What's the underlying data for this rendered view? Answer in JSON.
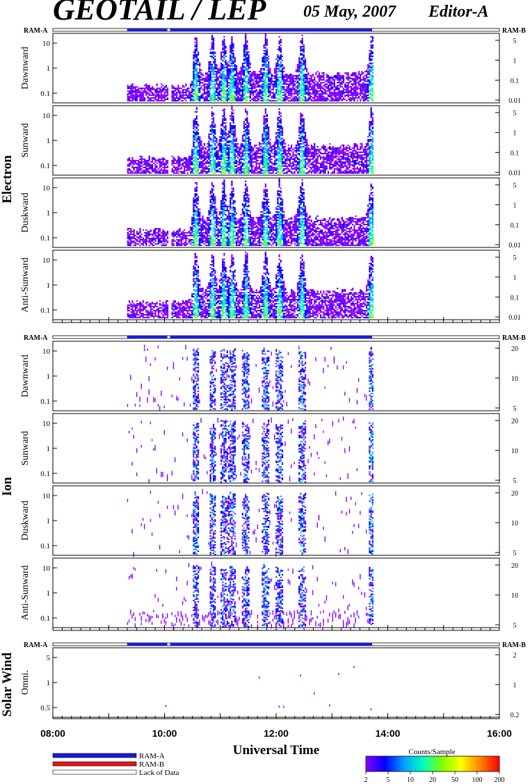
{
  "header": {
    "title": "GEOTAIL / LEP",
    "date": "05 May, 2007",
    "editor": "Editor-A"
  },
  "chart_data": {
    "type": "heatmap",
    "xlabel": "Universal Time",
    "x_ticks": [
      "08:00",
      "10:00",
      "12:00",
      "14:00",
      "16:00"
    ],
    "xlim_hours": [
      8,
      16
    ],
    "data_coverage_hours": [
      9.33,
      13.72
    ],
    "data_gap_hours": [
      10.05,
      10.1
    ],
    "panels_groups": [
      {
        "group": "Electron",
        "panels": [
          {
            "label": "Dawnward",
            "left_ticks": [
              "10",
              "1",
              "0.1"
            ],
            "right_ticks": [
              "5",
              "1",
              "0.1",
              "0.01"
            ]
          },
          {
            "label": "Sunward",
            "left_ticks": [
              "10",
              "1",
              "0.1"
            ],
            "right_ticks": [
              "5",
              "1",
              "0.1",
              "0.01"
            ]
          },
          {
            "label": "Duskward",
            "left_ticks": [
              "10",
              "1",
              "0.1"
            ],
            "right_ticks": [
              "5",
              "1",
              "0.1",
              "0.01"
            ]
          },
          {
            "label": "Anti-Sunward",
            "left_ticks": [
              "10",
              "1",
              "0.1"
            ],
            "right_ticks": [
              "5",
              "1",
              "0.1",
              "0.01"
            ]
          }
        ]
      },
      {
        "group": "Ion",
        "panels": [
          {
            "label": "Dawnward",
            "left_ticks": [
              "10",
              "1",
              "0.1"
            ],
            "right_ticks": [
              "20",
              "10",
              "5"
            ]
          },
          {
            "label": "Sunward",
            "left_ticks": [
              "10",
              "1",
              "0.1"
            ],
            "right_ticks": [
              "20",
              "10",
              "5"
            ]
          },
          {
            "label": "Duskward",
            "left_ticks": [
              "10",
              "1",
              "0.1"
            ],
            "right_ticks": [
              "20",
              "10",
              "5"
            ]
          },
          {
            "label": "Anti-Sunward",
            "left_ticks": [
              "10",
              "1",
              "0.1"
            ],
            "right_ticks": [
              "20",
              "10",
              "5"
            ]
          }
        ]
      },
      {
        "group": "Solar Wind",
        "panels": [
          {
            "label": "Omni.",
            "left_ticks": [
              "5",
              "1",
              "0.5"
            ],
            "right_ticks": [
              "2",
              "1",
              "0.2"
            ]
          }
        ]
      }
    ],
    "ram_bar_left_label": "RAM-A",
    "ram_bar_right_label": "RAM-B",
    "activity_hours": [
      10.55,
      10.85,
      11.05,
      11.2,
      11.45,
      11.8,
      12.05,
      12.45,
      13.7
    ],
    "legend": {
      "ram_a": "RAM-A",
      "ram_b": "RAM-B",
      "lack": "Lack of Data",
      "colors": {
        "ram_a": "#1a1adc",
        "ram_b": "#e01818",
        "lack": "#ffffff"
      }
    },
    "colorbar": {
      "title": "Counts/Sample",
      "ticks": [
        "2",
        "5",
        "10",
        "20",
        "50",
        "100",
        "200"
      ],
      "colors": [
        "#8a00ff",
        "#0000ff",
        "#00a0ff",
        "#00ffc0",
        "#80ff00",
        "#ffff00",
        "#ff8000",
        "#ff0000"
      ]
    }
  }
}
